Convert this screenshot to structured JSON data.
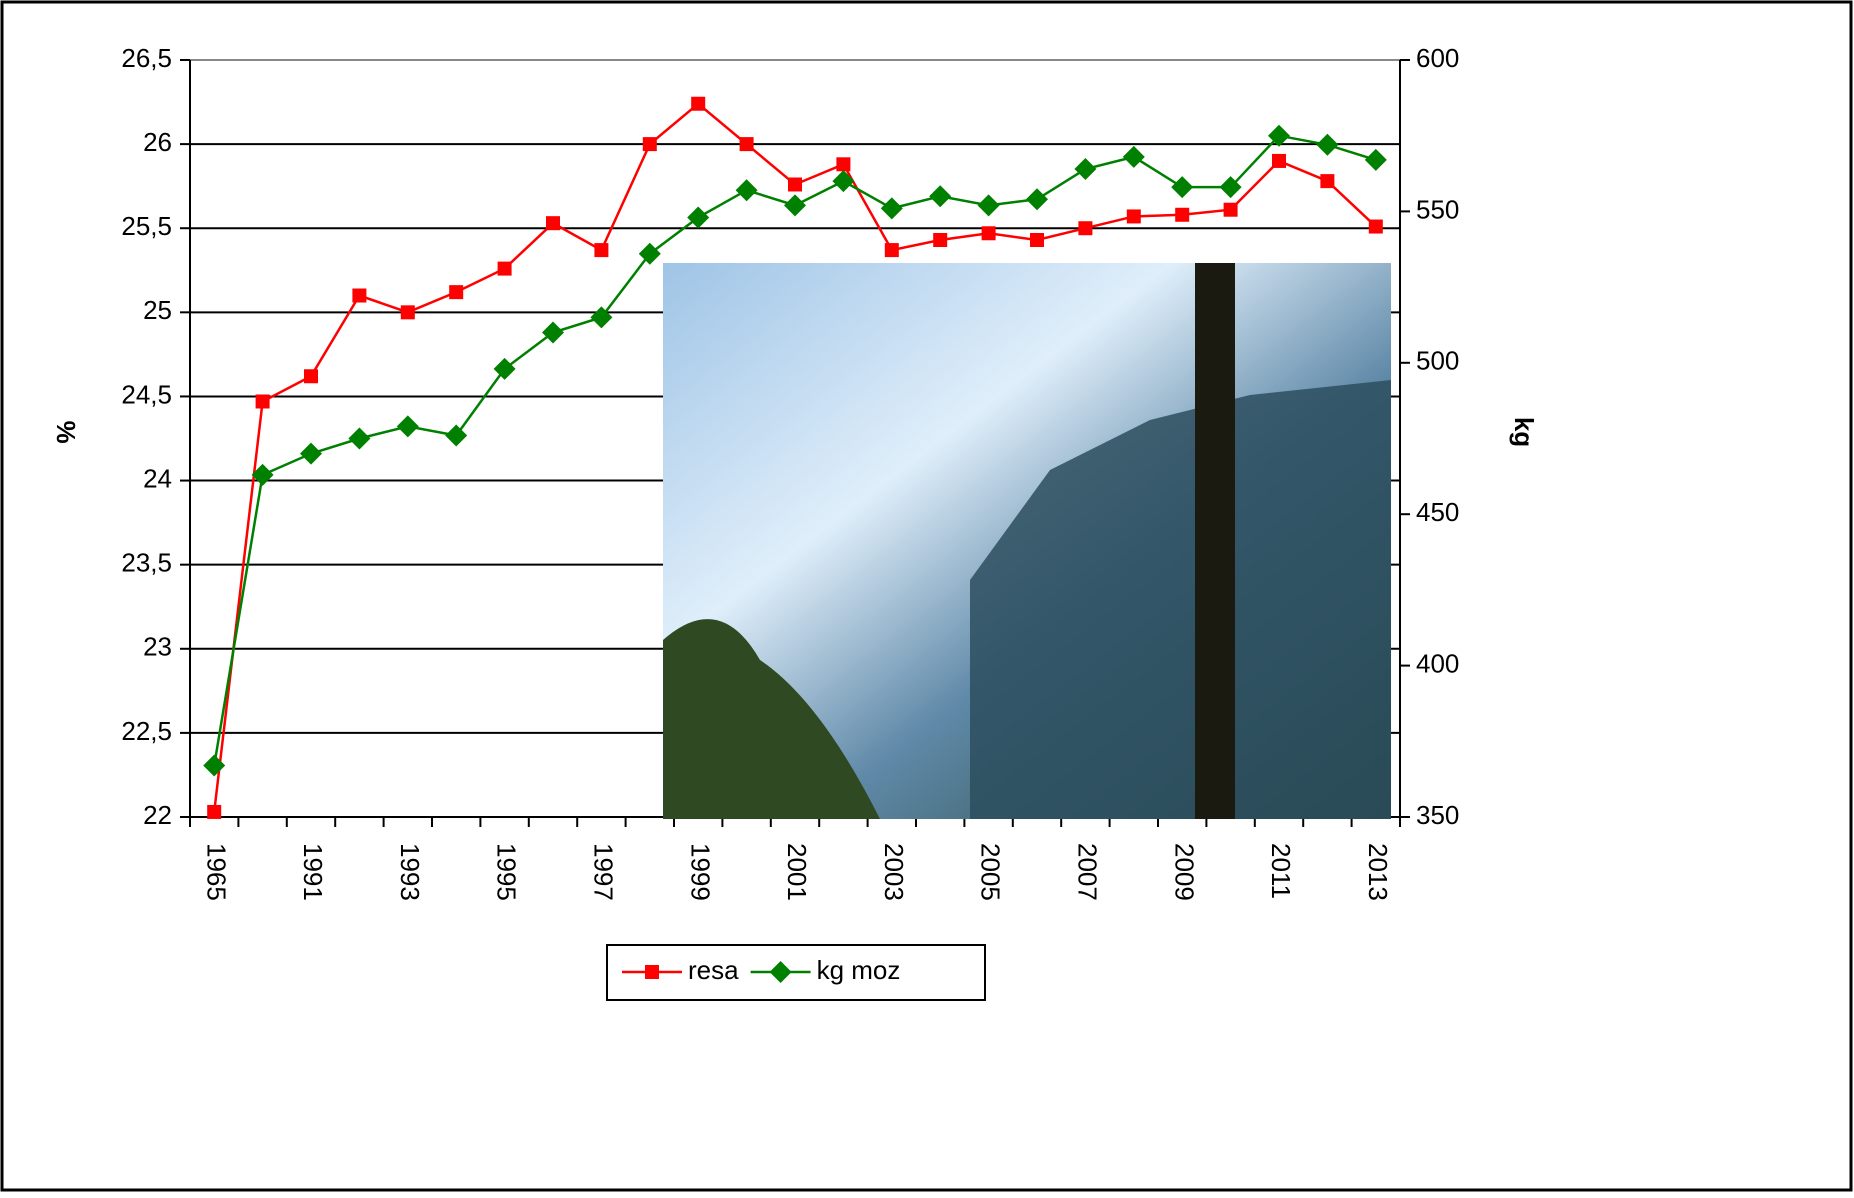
{
  "chart_data": {
    "type": "line",
    "y_label": "%",
    "y2_label": "kg",
    "categories": [
      "1965",
      null,
      "1991",
      null,
      "1993",
      null,
      "1995",
      null,
      "1997",
      null,
      "1999",
      null,
      "2001",
      null,
      "2003",
      null,
      "2005",
      null,
      "2007",
      null,
      "2009",
      null,
      "2011",
      null,
      "2013"
    ],
    "series": [
      {
        "name": "resa",
        "color": "#ff0000",
        "marker": "square",
        "values": [
          22.03,
          24.47,
          24.62,
          25.1,
          25.0,
          25.12,
          25.26,
          25.53,
          25.37,
          26.0,
          26.24,
          26.0,
          25.76,
          25.88,
          25.37,
          25.43,
          25.47,
          25.43,
          25.5,
          25.57,
          25.58,
          25.61,
          25.9,
          25.78,
          25.51
        ]
      },
      {
        "name": "kg moz",
        "color": "#008000",
        "marker": "diamond",
        "axis": "y2",
        "values": [
          367,
          463,
          470,
          475,
          479,
          476,
          498,
          510,
          515,
          536,
          548,
          557,
          552,
          560,
          551,
          555,
          552,
          554,
          564,
          568,
          558,
          558,
          575,
          572,
          567
        ]
      }
    ],
    "ylim": [
      22,
      26.5
    ],
    "yticks": [
      22,
      {
        "value": 22.5,
        "label": "22,5"
      },
      23,
      {
        "value": 23.5,
        "label": "23,5"
      },
      24,
      {
        "value": 24.5,
        "label": "24,5"
      },
      25,
      {
        "value": 25.5,
        "label": "25,5"
      },
      26,
      {
        "value": 26.5,
        "label": "26,5"
      }
    ],
    "y2lim": [
      350,
      600
    ],
    "y2ticks": [
      350,
      400,
      450,
      500,
      550,
      600
    ],
    "grid": true,
    "legend": "bottom"
  }
}
